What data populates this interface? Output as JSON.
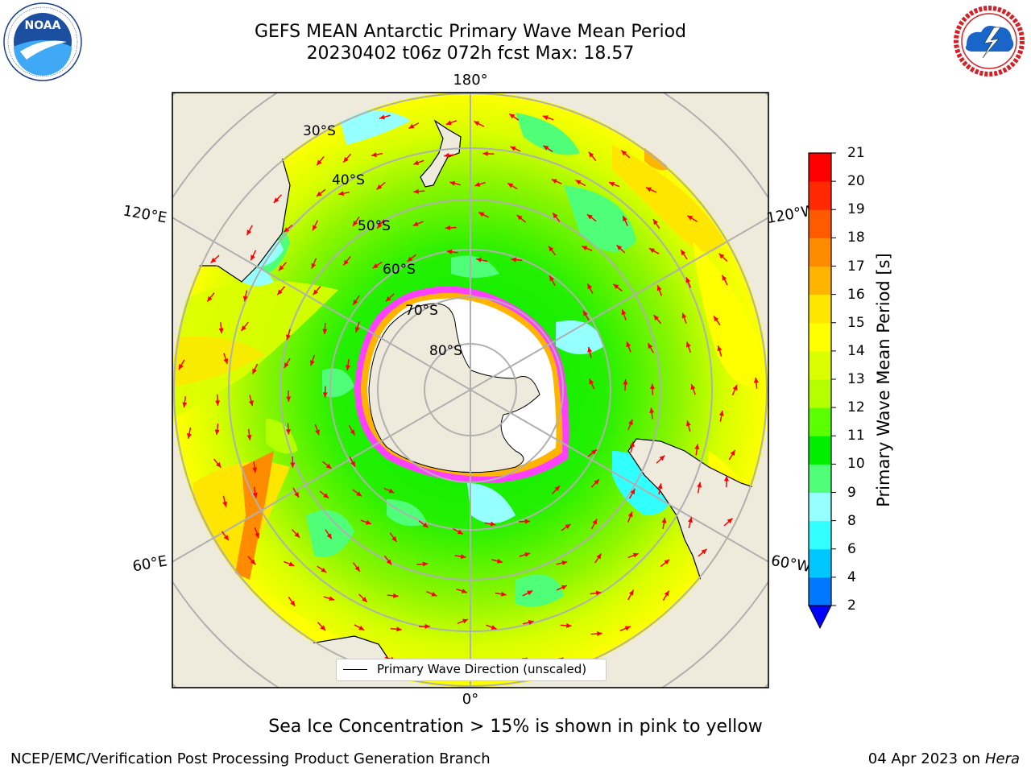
{
  "header": {
    "title_line1": "GEFS MEAN Antarctic Primary Wave Mean Period",
    "title_line2": "20230402 t06z 072h fcst   Max: 18.57"
  },
  "logos": {
    "left": {
      "text": "NOAA",
      "ring_text": "NATIONAL OCEANIC AND ATMOSPHERIC ADMINISTRATION · U.S. DEPARTMENT OF COMMERCE",
      "icon": "noaa-logo-icon"
    },
    "right": {
      "ring_text": "NATIONAL WEATHER SERVICE",
      "icon": "nws-logo-icon"
    }
  },
  "map": {
    "projection": "south-polar-stereographic",
    "lon_labels": {
      "top": "180°",
      "bottom": "0°",
      "left_upper": "120°E",
      "left_lower": "60°E",
      "right_upper": "120°W",
      "right_lower": "60°W"
    },
    "lat_labels": [
      "30°S",
      "40°S",
      "50°S",
      "60°S",
      "70°S",
      "80°S"
    ],
    "colors": {
      "land": "#efebdc",
      "ice": "#ffffff",
      "ice_edge": "#ff40ff",
      "arrows": "#ff0000",
      "grid": "#b0b0b0"
    }
  },
  "legend": {
    "text": "Primary Wave Direction (unscaled)"
  },
  "colorbar": {
    "label": "Primary Wave Mean Period [s]",
    "ticks": [
      "2",
      "4",
      "6",
      "8",
      "9",
      "10",
      "11",
      "12",
      "13",
      "14",
      "15",
      "16",
      "17",
      "18",
      "19",
      "20",
      "21"
    ],
    "colors": [
      "#0078ff",
      "#00c8ff",
      "#32ffff",
      "#96ffff",
      "#50ff78",
      "#00ee00",
      "#5aff00",
      "#b4ff00",
      "#dcff00",
      "#ffff00",
      "#ffe600",
      "#ffb400",
      "#ff8c00",
      "#ff5a00",
      "#ff2800",
      "#ff0000"
    ],
    "extend_color": "#0000ff"
  },
  "caption": "Sea Ice Concentration > 15% is shown in pink to yellow",
  "footer": {
    "left": "NCEP/EMC/Verification Post Processing Product Generation Branch",
    "right_date": "04 Apr 2023 on ",
    "right_host": "Hera"
  }
}
